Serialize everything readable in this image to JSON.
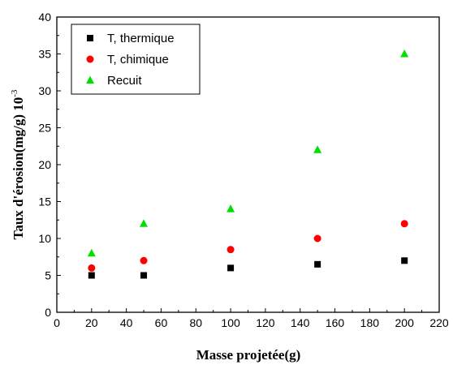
{
  "chart_data": {
    "type": "scatter",
    "xlabel": "Masse projetée(g)",
    "ylabel": "Taux d'érosion(mg/g) 10",
    "ylabel_exponent": "-3",
    "xlim": [
      0,
      220
    ],
    "ylim": [
      0,
      40
    ],
    "x_ticks": [
      "0",
      "20",
      "40",
      "60",
      "80",
      "100",
      "120",
      "140",
      "160",
      "180",
      "200",
      "220"
    ],
    "y_ticks": [
      "0",
      "5",
      "10",
      "15",
      "20",
      "25",
      "30",
      "35",
      "40"
    ],
    "grid": false,
    "legend_position": "top-left",
    "series": [
      {
        "name": "T, thermique",
        "marker": "square",
        "color": "#000000",
        "x": [
          20,
          50,
          100,
          150,
          200
        ],
        "y": [
          5,
          5,
          6,
          6.5,
          7
        ]
      },
      {
        "name": "T, chimique",
        "marker": "circle",
        "color": "#ff0000",
        "x": [
          20,
          50,
          100,
          150,
          200
        ],
        "y": [
          6,
          7,
          8.5,
          10,
          12
        ]
      },
      {
        "name": "Recuit",
        "marker": "triangle",
        "color": "#00e000",
        "x": [
          20,
          50,
          100,
          150,
          200
        ],
        "y": [
          8,
          12,
          14,
          22,
          35
        ]
      }
    ]
  }
}
